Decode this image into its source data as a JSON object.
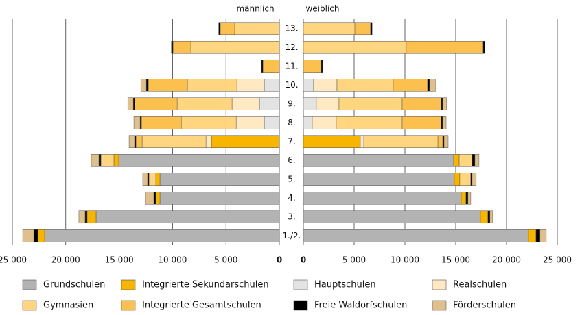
{
  "chart_data": {
    "type": "pyramid-bar",
    "left_label": "männlich",
    "right_label": "weiblich",
    "categories": [
      "13.",
      "12.",
      "11.",
      "10.",
      "9.",
      "8.",
      "7.",
      "6.",
      "5.",
      "4.",
      "3.",
      "1./2."
    ],
    "xlim": [
      0,
      25000
    ],
    "xticks": [
      0,
      {
        "value": 5000,
        "label": "5 000"
      },
      {
        "value": 10000,
        "label": "10 000"
      },
      {
        "value": 15000,
        "label": "15 000"
      },
      {
        "value": 20000,
        "label": "20 000"
      },
      {
        "value": 25000,
        "label": "25 000"
      }
    ],
    "grid": true,
    "series": [
      {
        "name": "Grundschulen",
        "color": "#b3b3b3",
        "male": [
          0,
          0,
          0,
          0,
          0,
          0,
          0,
          15040,
          11180,
          11180,
          17160,
          21980
        ],
        "female": [
          0,
          0,
          0,
          0,
          0,
          0,
          0,
          14800,
          14860,
          15540,
          17430,
          22160
        ]
      },
      {
        "name": "Integrierte Sekundarschulen",
        "color": "#f7b500",
        "male": [
          0,
          0,
          0,
          0,
          0,
          0,
          6360,
          450,
          390,
          390,
          840,
          640
        ],
        "female": [
          0,
          0,
          0,
          0,
          0,
          0,
          5610,
          540,
          540,
          470,
          740,
          740
        ]
      },
      {
        "name": "Hauptschulen",
        "color": "#e3e3e3",
        "male": [
          0,
          0,
          0,
          1410,
          1860,
          1410,
          0,
          0,
          0,
          0,
          0,
          0
        ],
        "female": [
          0,
          0,
          0,
          1010,
          1280,
          880,
          0,
          0,
          0,
          0,
          0,
          0
        ]
      },
      {
        "name": "Realschulen",
        "color": "#ffe9c2",
        "male": [
          0,
          0,
          0,
          2570,
          2570,
          2630,
          510,
          0,
          0,
          0,
          0,
          0
        ],
        "female": [
          0,
          0,
          0,
          2300,
          2230,
          2360,
          340,
          0,
          0,
          0,
          0,
          0
        ]
      },
      {
        "name": "Gymnasien",
        "color": "#ffd580",
        "male": [
          4180,
          8290,
          0,
          4630,
          5140,
          5140,
          5980,
          1220,
          640,
          0,
          0,
          0
        ],
        "female": [
          5070,
          10130,
          0,
          5540,
          6220,
          6490,
          7300,
          1280,
          1080,
          0,
          0,
          0
        ]
      },
      {
        "name": "Integrierte Gesamtschulen",
        "color": "#fbc04e",
        "male": [
          1350,
          1670,
          1540,
          3660,
          3980,
          3730,
          580,
          0,
          0,
          0,
          0,
          0
        ],
        "female": [
          1550,
          7570,
          1760,
          3380,
          3850,
          3850,
          470,
          0,
          0,
          0,
          0,
          0
        ]
      },
      {
        "name": "Freie Waldorfschulen",
        "color": "#000000",
        "male": [
          150,
          150,
          130,
          190,
          130,
          130,
          130,
          190,
          130,
          190,
          190,
          380
        ],
        "female": [
          150,
          150,
          130,
          200,
          135,
          135,
          135,
          270,
          135,
          200,
          200,
          400
        ]
      },
      {
        "name": "Förderschulen",
        "color": "#dfc08c",
        "male": [
          0,
          0,
          0,
          510,
          510,
          580,
          510,
          710,
          450,
          770,
          580,
          1030
        ],
        "female": [
          0,
          0,
          0,
          610,
          400,
          340,
          400,
          400,
          400,
          270,
          270,
          610
        ]
      }
    ]
  }
}
